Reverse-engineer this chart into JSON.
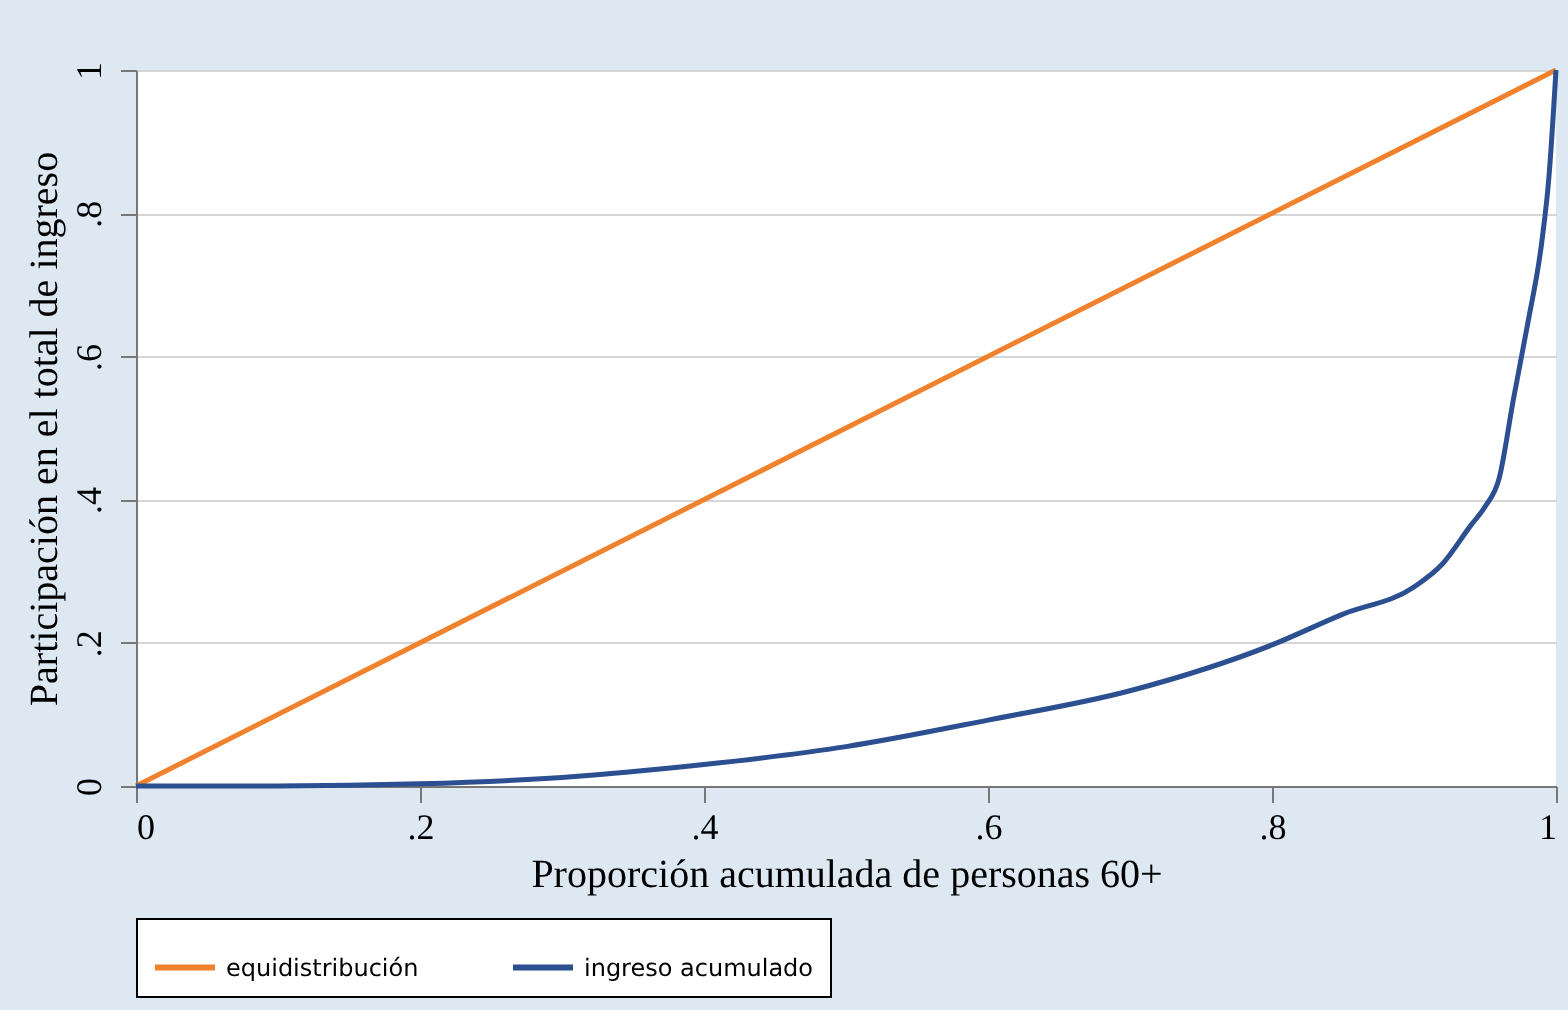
{
  "chart_data": {
    "type": "line",
    "xlabel": "Proporción acumulada de personas 60+",
    "ylabel": "Participación en el total de ingreso",
    "xlim": [
      0,
      1
    ],
    "ylim": [
      0,
      1
    ],
    "xticks": [
      0,
      {
        "value": 0.2,
        "label": ".2"
      },
      {
        "value": 0.4,
        "label": ".4"
      },
      {
        "value": 0.6,
        "label": ".6"
      },
      {
        "value": 0.8,
        "label": ".8"
      },
      1
    ],
    "yticks": [
      0,
      {
        "value": 0.2,
        "label": ".2"
      },
      {
        "value": 0.4,
        "label": ".4"
      },
      {
        "value": 0.6,
        "label": ".6"
      },
      {
        "value": 0.8,
        "label": ".8"
      },
      1
    ],
    "grid": "y",
    "legend": "bottom",
    "line_style": "solid",
    "marker": "none",
    "series": [
      {
        "name": "equidistribución",
        "color": "#f0822e",
        "x": [
          0,
          1
        ],
        "values": [
          0,
          1
        ]
      },
      {
        "name": "ingreso acumulado",
        "color": "#2b4f91",
        "x": [
          0,
          0.1,
          0.2,
          0.3,
          0.4,
          0.5,
          0.6,
          0.7,
          0.8,
          0.85,
          0.9,
          0.92,
          0.94,
          0.95,
          0.96,
          0.97,
          0.98,
          0.99,
          0.995,
          1
        ],
        "values": [
          0,
          0,
          0.003,
          0.012,
          0.03,
          0.055,
          0.092,
          0.133,
          0.197,
          0.24,
          0.278,
          0.31,
          0.364,
          0.39,
          0.43,
          0.54,
          0.645,
          0.76,
          0.85,
          1
        ]
      }
    ]
  }
}
